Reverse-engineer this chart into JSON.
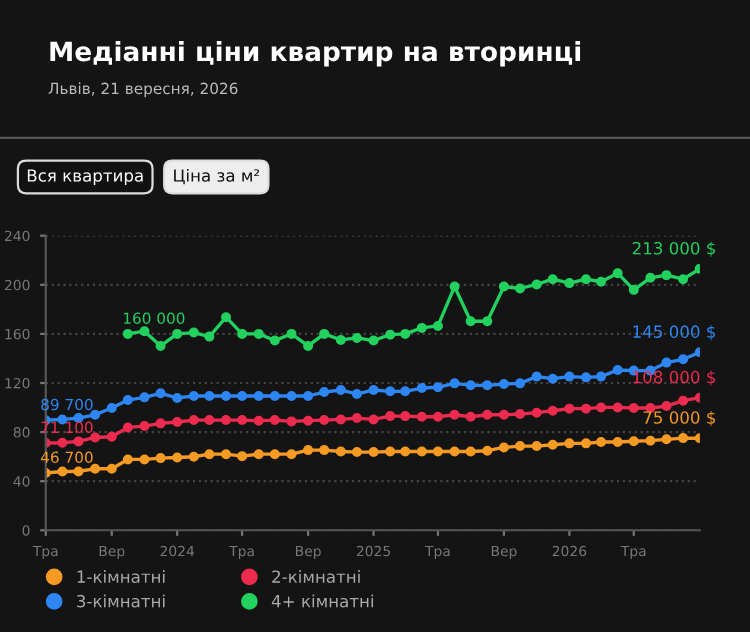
{
  "chart_data": {
    "type": "line",
    "title": "Медіанні ціни квартир на вторинці",
    "subtitle": "Львів, 21 вересня, 2026",
    "x": [
      "2023-05",
      "2023-06",
      "2023-07",
      "2023-08",
      "2023-09",
      "2023-10",
      "2023-11",
      "2023-12",
      "2024-01",
      "2024-02",
      "2024-03",
      "2024-04",
      "2024-05",
      "2024-06",
      "2024-07",
      "2024-08",
      "2024-09",
      "2024-10",
      "2024-11",
      "2024-12",
      "2025-01",
      "2025-02",
      "2025-03",
      "2025-04",
      "2025-05",
      "2025-06",
      "2025-07",
      "2025-08",
      "2025-09",
      "2025-10",
      "2025-11",
      "2025-12",
      "2026-01",
      "2026-02",
      "2026-03",
      "2026-04",
      "2026-05",
      "2026-06",
      "2026-07",
      "2026-08",
      "2026-09"
    ],
    "series": [
      {
        "name": "1-кімнатні",
        "color": "#f59a23",
        "values": [
          46.7,
          47.9,
          47.9,
          50.1,
          50.1,
          57.7,
          57.7,
          58.8,
          59.3,
          59.9,
          62.0,
          62.0,
          60.4,
          62.0,
          62.0,
          62.0,
          65.3,
          65.3,
          64.2,
          63.7,
          63.7,
          64.2,
          64.2,
          64.2,
          64.2,
          64.2,
          64.2,
          64.8,
          67.5,
          68.6,
          68.6,
          69.7,
          70.8,
          70.8,
          71.9,
          71.9,
          72.5,
          73.0,
          74.1,
          75.1,
          75
        ]
      },
      {
        "name": "2-кімнатні",
        "color": "#ec2b4f",
        "values": [
          71.1,
          71.3,
          72.4,
          75.6,
          76.2,
          83.8,
          84.9,
          87.1,
          88.2,
          89.8,
          89.8,
          89.8,
          89.8,
          89.3,
          89.8,
          88.7,
          89.3,
          89.8,
          90.3,
          91.4,
          90.3,
          93.0,
          93.0,
          92.5,
          92.5,
          94.1,
          92.5,
          94.1,
          94.1,
          94.7,
          95.8,
          97.4,
          99.1,
          99.1,
          100.1,
          100.1,
          99.6,
          99.6,
          101.2,
          105.6,
          108
        ]
      },
      {
        "name": "3-кімнатні",
        "color": "#2d86f2",
        "values": [
          89.7,
          90.3,
          91.4,
          94.1,
          99.6,
          106.1,
          108.3,
          111.6,
          107.8,
          109.4,
          109.4,
          109.4,
          109.4,
          109.4,
          109.4,
          109.4,
          109.4,
          112.6,
          114.3,
          111.0,
          114.3,
          113.2,
          113.2,
          115.9,
          116.5,
          119.7,
          118.1,
          118.1,
          119.2,
          119.7,
          125.2,
          123.5,
          125.2,
          124.6,
          125.2,
          130.6,
          130.1,
          130.1,
          136.6,
          139.3,
          145
        ]
      },
      {
        "name": "4+ кімнатні",
        "color": "#22d15e",
        "x": [
          "2023-10",
          "2023-11",
          "2023-12",
          "2024-01",
          "2024-02",
          "2024-03",
          "2024-04",
          "2024-05",
          "2024-06",
          "2024-07",
          "2024-08",
          "2024-09",
          "2024-10",
          "2024-11",
          "2024-12",
          "2025-01",
          "2025-02",
          "2025-03",
          "2025-04",
          "2025-05",
          "2025-06",
          "2025-07",
          "2025-08",
          "2025-09",
          "2025-10",
          "2025-11",
          "2025-12",
          "2026-01",
          "2026-02",
          "2026-03",
          "2026-04",
          "2026-05",
          "2026-06",
          "2026-07",
          "2026-08",
          "2026-09"
        ],
        "values": [
          160,
          162.2,
          150.2,
          160,
          161.1,
          157.8,
          173.6,
          160,
          160,
          154.6,
          160,
          150.2,
          160,
          155.1,
          156.7,
          154.6,
          159.4,
          160,
          164.9,
          166.5,
          198.6,
          170.3,
          170.3,
          198.6,
          197.0,
          200.3,
          204.6,
          201.4,
          204.6,
          202.5,
          209.5,
          195.9,
          205.7,
          207.9,
          204.6,
          213
        ]
      }
    ],
    "xlim": [
      "2023-05",
      "2026-09"
    ],
    "xticks": [
      {
        "value": "2023-05",
        "label": "Тра"
      },
      {
        "value": "2023-09",
        "label": "Вер"
      },
      {
        "value": "2024-01",
        "label": "2024"
      },
      {
        "value": "2024-05",
        "label": "Тра"
      },
      {
        "value": "2024-09",
        "label": "Вер"
      },
      {
        "value": "2025-01",
        "label": "2025"
      },
      {
        "value": "2025-05",
        "label": "Тра"
      },
      {
        "value": "2025-09",
        "label": "Вер"
      },
      {
        "value": "2026-01",
        "label": "2026"
      },
      {
        "value": "2026-05",
        "label": "Тра"
      }
    ],
    "ylim": [
      0,
      240
    ],
    "yticks": [
      0,
      40,
      80,
      120,
      160,
      200,
      240
    ],
    "grid": "y",
    "marker": "circle",
    "line_style": "solid",
    "legend": "bottom",
    "annotations": [
      "Вся квартира",
      "Ціна за м²",
      {
        "text": "46 700",
        "x": "2023-05",
        "y": 46.7
      },
      {
        "text": "71 100",
        "x": "2023-05",
        "y": 71.1
      },
      {
        "text": "89 700",
        "x": "2023-05",
        "y": 89.7
      },
      {
        "text": "160 000",
        "x": "2023-10",
        "y": 160
      },
      {
        "text": "75 000 $",
        "x": "2026-09",
        "y": 75
      },
      {
        "text": "108 000 $",
        "x": "2026-09",
        "y": 108
      },
      {
        "text": "145 000 $",
        "x": "2026-09",
        "y": 145
      },
      {
        "text": "213 000 $",
        "x": "2026-09",
        "y": 213
      }
    ]
  }
}
